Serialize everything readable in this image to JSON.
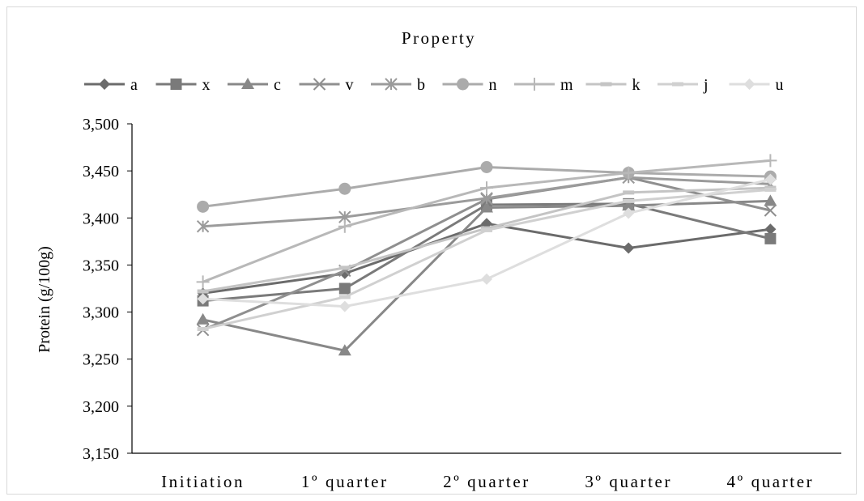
{
  "chart_data": {
    "type": "line",
    "title": "Property",
    "xlabel": "",
    "ylabel": "Protein (g/100g)",
    "categories": [
      "Initiation",
      "1º quarter",
      "2º quarter",
      "3º quarter",
      "4º quarter"
    ],
    "ylim": [
      3.15,
      3.5
    ],
    "y_ticks": [
      3.15,
      3.2,
      3.25,
      3.3,
      3.35,
      3.4,
      3.45,
      3.5
    ],
    "y_tick_labels": [
      "3,150",
      "3,200",
      "3,250",
      "3,300",
      "3,350",
      "3,400",
      "3,450",
      "3,500"
    ],
    "grid": false,
    "legend_position": "top",
    "series": [
      {
        "name": "a",
        "marker": "diamond",
        "color": "#6b6b6b",
        "values": [
          3.32,
          3.341,
          3.394,
          3.368,
          3.388
        ]
      },
      {
        "name": "x",
        "marker": "square",
        "color": "#7a7a7a",
        "values": [
          3.312,
          3.325,
          3.414,
          3.415,
          3.378
        ]
      },
      {
        "name": "c",
        "marker": "triangle",
        "color": "#888888",
        "values": [
          3.292,
          3.259,
          3.411,
          3.413,
          3.418
        ]
      },
      {
        "name": "v",
        "marker": "x",
        "color": "#8f8f8f",
        "values": [
          3.281,
          3.344,
          3.42,
          3.443,
          3.408
        ]
      },
      {
        "name": "b",
        "marker": "asterisk",
        "color": "#9b9b9b",
        "values": [
          3.391,
          3.401,
          3.421,
          3.443,
          3.436
        ]
      },
      {
        "name": "n",
        "marker": "circle",
        "color": "#ababab",
        "values": [
          3.412,
          3.431,
          3.454,
          3.448,
          3.444
        ]
      },
      {
        "name": "m",
        "marker": "plus",
        "color": "#b8b8b8",
        "values": [
          3.332,
          3.391,
          3.432,
          3.448,
          3.461
        ]
      },
      {
        "name": "k",
        "marker": "dash",
        "color": "#c4c4c4",
        "values": [
          3.322,
          3.347,
          3.389,
          3.427,
          3.432
        ]
      },
      {
        "name": "j",
        "marker": "dash",
        "color": "#d0d0d0",
        "values": [
          3.282,
          3.316,
          3.387,
          3.418,
          3.43
        ]
      },
      {
        "name": "u",
        "marker": "diamond",
        "color": "#dedede",
        "values": [
          3.314,
          3.306,
          3.335,
          3.405,
          3.441
        ]
      }
    ]
  }
}
